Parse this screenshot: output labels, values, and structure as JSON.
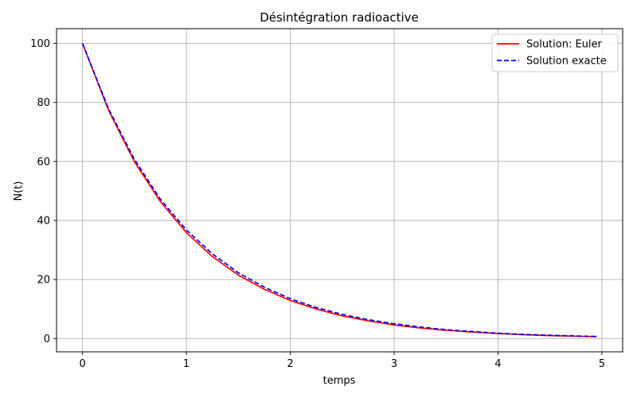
{
  "chart_data": {
    "type": "line",
    "title": "Désintégration radioactive",
    "xlabel": "temps",
    "ylabel": "N(t)",
    "xlim": [
      -0.25,
      5.2
    ],
    "ylim": [
      -4.5,
      105
    ],
    "xticks": [
      0,
      1,
      2,
      3,
      4,
      5
    ],
    "yticks": [
      0,
      20,
      40,
      60,
      80,
      100
    ],
    "xtick_labels": [
      "0",
      "1",
      "2",
      "3",
      "4",
      "5"
    ],
    "ytick_labels": [
      "0",
      "20",
      "40",
      "60",
      "80",
      "100"
    ],
    "grid": true,
    "legend_position": "top-right",
    "x": [
      0,
      0.25,
      0.5,
      0.75,
      1.0,
      1.25,
      1.5,
      1.75,
      2.0,
      2.25,
      2.5,
      2.75,
      3.0,
      3.25,
      3.5,
      3.75,
      4.0,
      4.25,
      4.5,
      4.75,
      4.95
    ],
    "series": [
      {
        "name": "Solution: Euler",
        "color": "#ff0000",
        "style": "solid",
        "values": [
          100,
          77.4,
          59.9,
          46.4,
          35.9,
          27.8,
          21.5,
          16.7,
          12.9,
          10.0,
          7.7,
          6.0,
          4.6,
          3.6,
          2.8,
          2.2,
          1.7,
          1.3,
          1.0,
          0.77,
          0.63
        ]
      },
      {
        "name": "Solution exacte",
        "color": "#0000ff",
        "style": "dashed",
        "values": [
          100,
          77.9,
          60.7,
          47.2,
          36.8,
          28.7,
          22.3,
          17.4,
          13.5,
          10.5,
          8.2,
          6.4,
          5.0,
          3.9,
          3.0,
          2.4,
          1.8,
          1.4,
          1.1,
          0.87,
          0.71
        ]
      }
    ]
  }
}
